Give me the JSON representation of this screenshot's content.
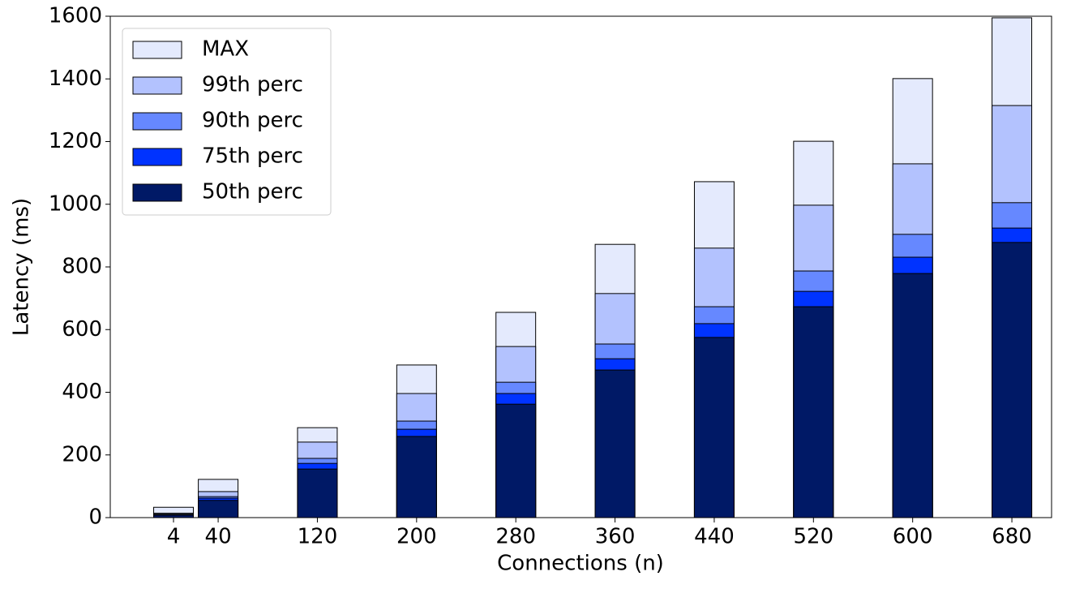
{
  "chart_data": {
    "type": "bar",
    "x_label": "Connections (n)",
    "y_label": "Latency (ms)",
    "x": [
      4,
      40,
      120,
      200,
      280,
      360,
      440,
      520,
      600,
      680
    ],
    "series": [
      {
        "name": "MAX",
        "color": "#e4eafd",
        "values": [
          33,
          122,
          287,
          487,
          655,
          872,
          1072,
          1201,
          1401,
          1595
        ]
      },
      {
        "name": "99th perc",
        "color": "#b3c2fe",
        "values": [
          14,
          83,
          241,
          396,
          546,
          715,
          860,
          997,
          1129,
          1315
        ]
      },
      {
        "name": "90th perc",
        "color": "#6688ff",
        "values": [
          11,
          67,
          189,
          308,
          432,
          554,
          673,
          787,
          904,
          1005
        ]
      },
      {
        "name": "75th perc",
        "color": "#0033ff",
        "values": [
          9,
          62,
          173,
          282,
          396,
          507,
          619,
          722,
          831,
          924
        ]
      },
      {
        "name": "50th perc",
        "color": "#001966",
        "values": [
          8,
          55,
          155,
          259,
          362,
          471,
          575,
          673,
          779,
          878
        ]
      }
    ],
    "bar_width": 32,
    "xlim": [
      -47,
      712
    ],
    "xticks": [
      4,
      40,
      120,
      200,
      280,
      360,
      440,
      520,
      600,
      680
    ],
    "ylim": [
      0,
      1600
    ],
    "yticks": [
      0,
      200,
      400,
      600,
      800,
      1000,
      1200,
      1400,
      1600
    ],
    "legend": "upper-left"
  }
}
